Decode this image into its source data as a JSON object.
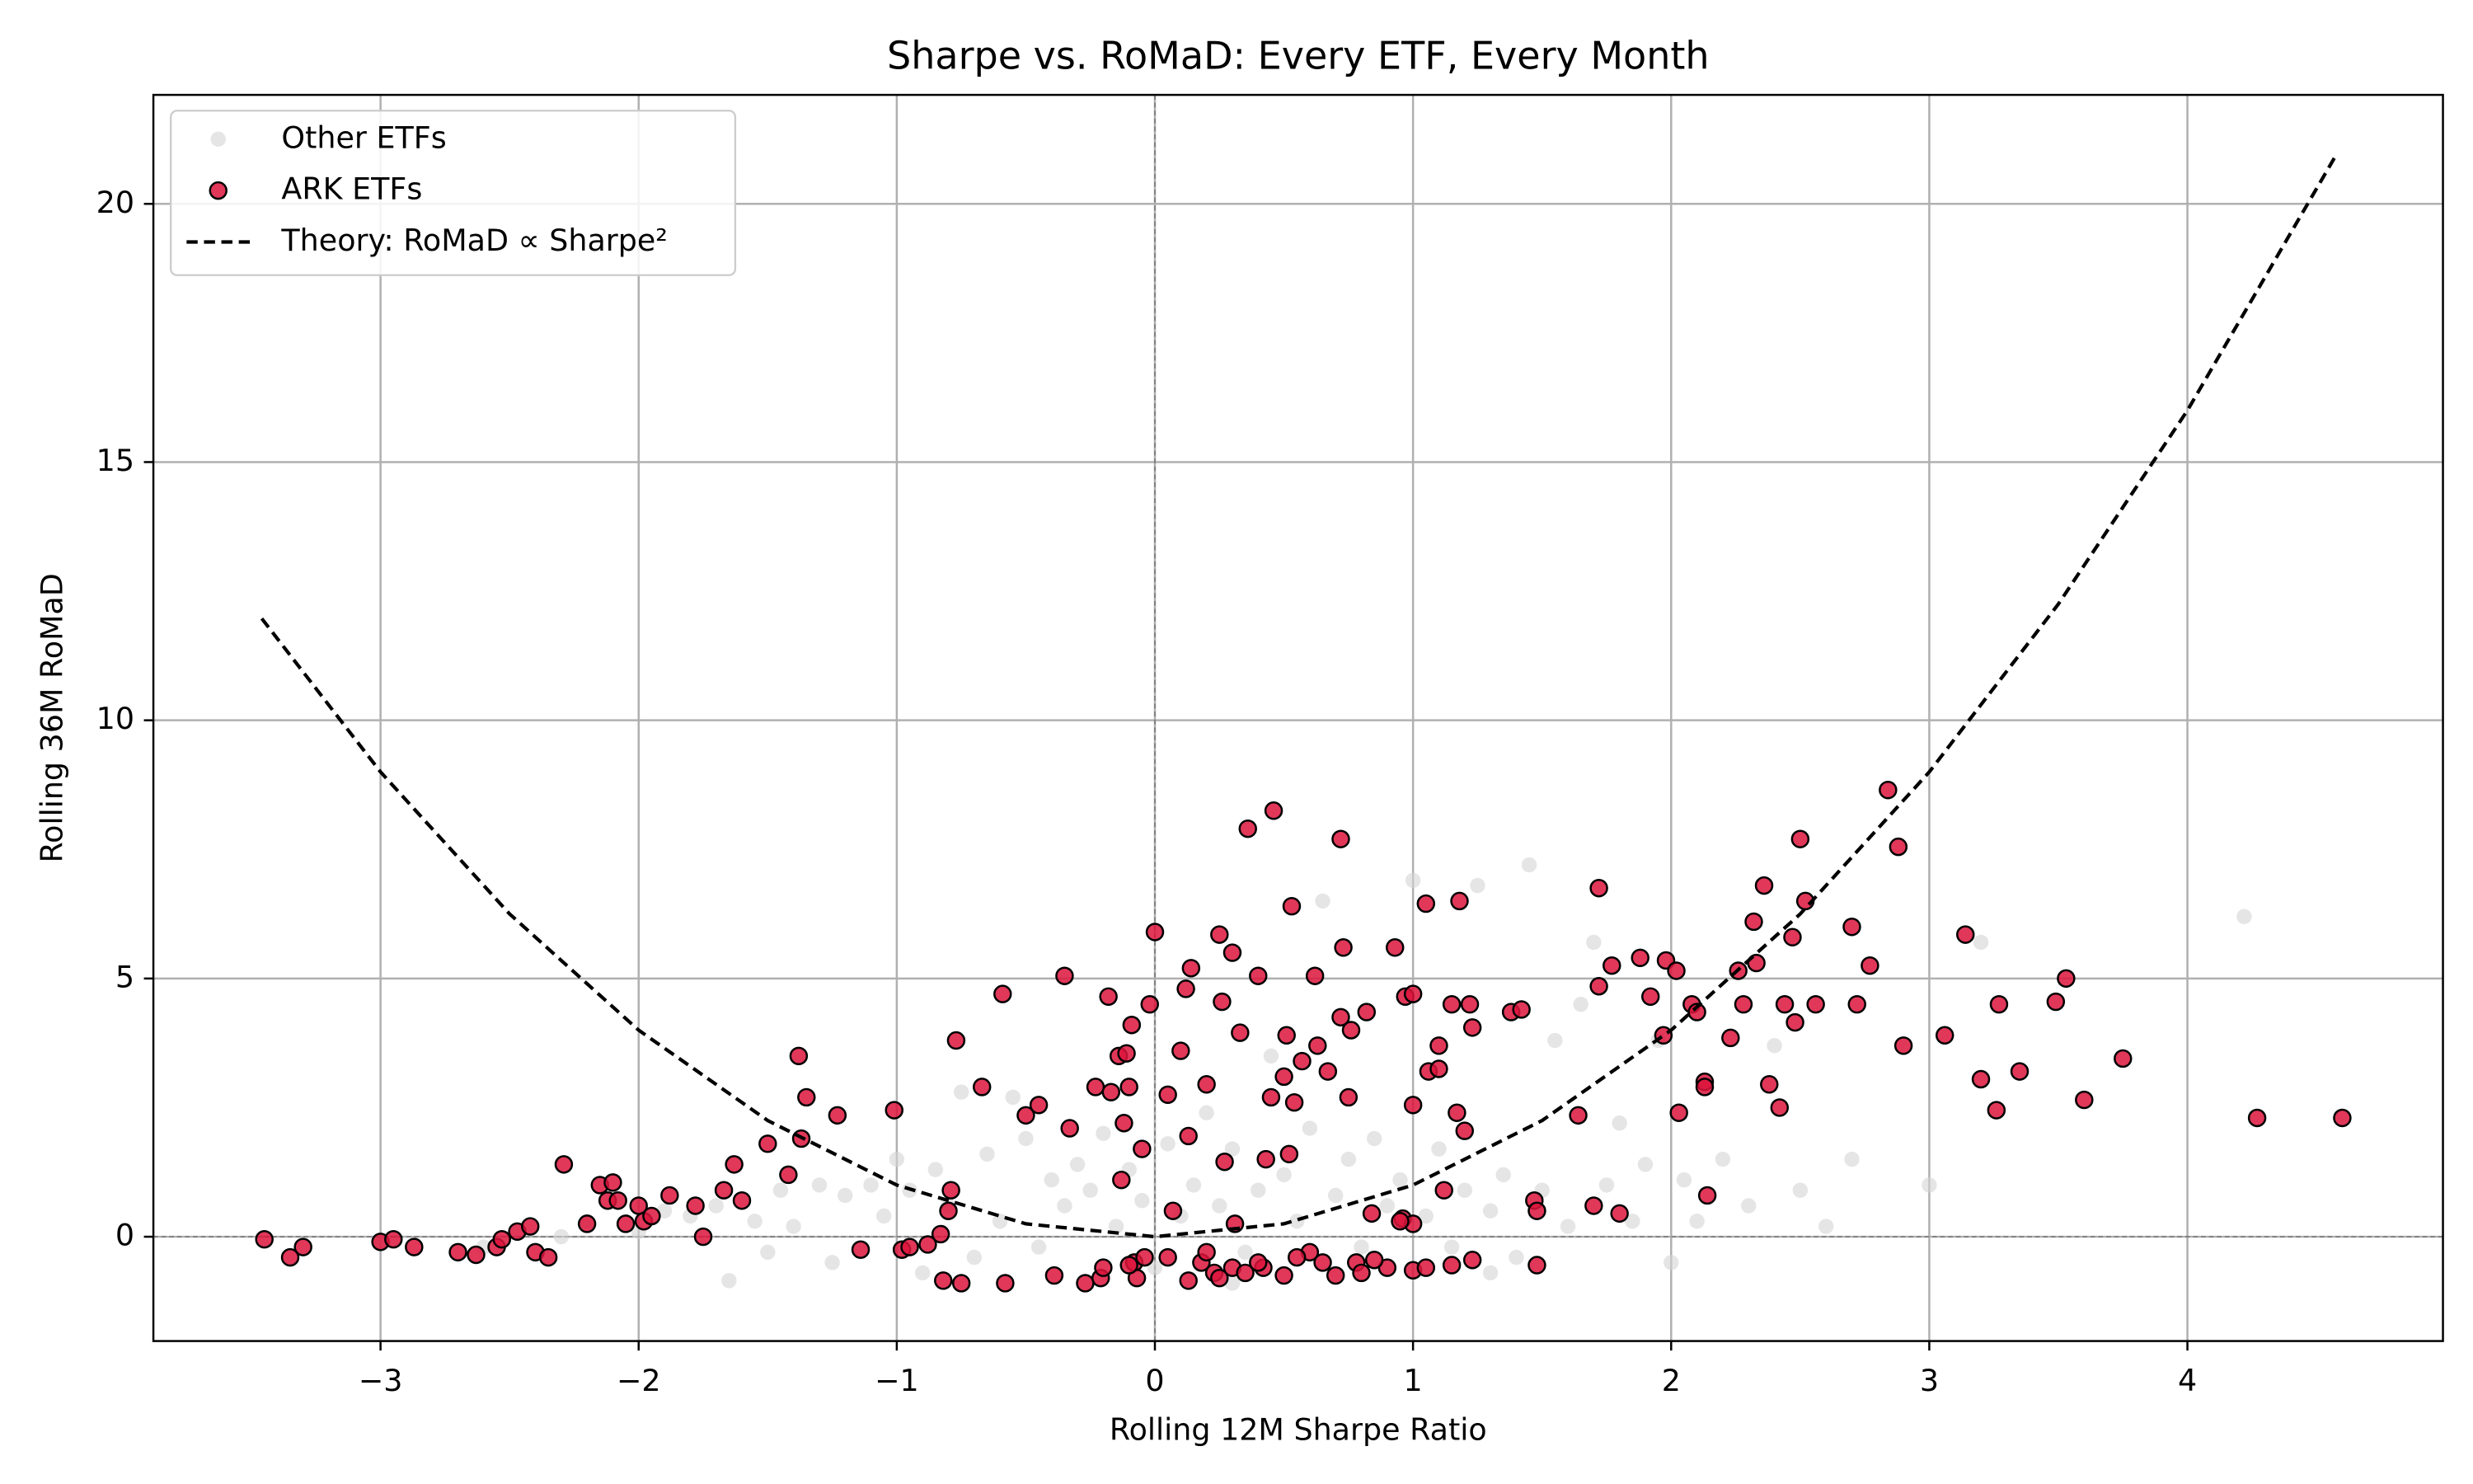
{
  "chart_data": {
    "type": "scatter",
    "title": "Sharpe vs. RoMaD: Every ETF, Every Month",
    "x_label": "Rolling 12M Sharpe Ratio",
    "y_label": "Rolling 36M RoMaD",
    "xlim": [
      -3.88,
      4.99
    ],
    "ylim": [
      -2.02,
      22.11
    ],
    "xticks": [
      {
        "value": -3,
        "label": "−3"
      },
      {
        "value": -2,
        "label": "−2"
      },
      {
        "value": -1,
        "label": "−1"
      },
      0,
      1,
      2,
      3,
      4
    ],
    "yticks": [
      0,
      5,
      10,
      15,
      20
    ],
    "grid": true,
    "legend": "upper left",
    "hline": 0,
    "vline": 0,
    "series": [
      {
        "name": "Other ETFs",
        "type": "scatter",
        "color": "#d3d3d3",
        "x": [
          -3.0,
          -2.6,
          -2.3,
          -2.2,
          -2.0,
          -1.9,
          -1.8,
          -1.7,
          -1.65,
          -1.55,
          -1.45,
          -1.4,
          -1.3,
          -1.25,
          -1.2,
          -1.1,
          -1.05,
          -1.0,
          -0.95,
          -0.9,
          -0.85,
          -0.8,
          -0.75,
          -0.7,
          -0.65,
          -0.6,
          -0.55,
          -0.5,
          -0.45,
          -0.4,
          -0.35,
          -0.3,
          -0.25,
          -0.2,
          -0.15,
          -0.1,
          -0.05,
          0.0,
          0.05,
          0.1,
          0.15,
          0.2,
          0.25,
          0.3,
          0.35,
          0.4,
          0.45,
          0.5,
          0.55,
          0.6,
          0.65,
          0.7,
          0.75,
          0.8,
          0.85,
          0.9,
          0.95,
          1.0,
          1.05,
          1.1,
          1.15,
          1.2,
          1.25,
          1.3,
          1.35,
          1.4,
          1.45,
          1.5,
          1.55,
          1.6,
          1.65,
          1.7,
          1.75,
          1.8,
          1.85,
          1.9,
          1.95,
          2.0,
          2.05,
          2.1,
          2.2,
          2.3,
          2.4,
          2.5,
          2.6,
          2.7,
          3.2,
          4.22,
          3.0,
          -1.5,
          0.3,
          1.3
        ],
        "values": [
          -0.1,
          -0.2,
          0.0,
          0.3,
          0.1,
          0.5,
          0.4,
          0.6,
          -0.85,
          0.3,
          0.9,
          0.2,
          1.0,
          -0.5,
          0.8,
          1.0,
          0.4,
          1.5,
          0.9,
          -0.7,
          1.3,
          0.6,
          2.8,
          -0.4,
          1.6,
          0.3,
          2.7,
          1.9,
          -0.2,
          1.1,
          0.6,
          1.4,
          0.9,
          2.0,
          0.2,
          1.3,
          0.7,
          -0.6,
          1.8,
          0.4,
          1.0,
          2.4,
          0.6,
          1.7,
          -0.3,
          0.9,
          3.5,
          1.2,
          0.3,
          2.1,
          6.5,
          0.8,
          1.5,
          -0.2,
          1.9,
          0.6,
          1.1,
          6.9,
          0.4,
          1.7,
          -0.2,
          0.9,
          6.8,
          0.5,
          1.2,
          -0.4,
          7.2,
          0.9,
          3.8,
          0.2,
          4.5,
          5.7,
          1.0,
          2.2,
          0.3,
          1.4,
          3.8,
          -0.5,
          1.1,
          0.3,
          1.5,
          0.6,
          3.7,
          0.9,
          0.2,
          1.5,
          5.7,
          6.2,
          1.0,
          -0.3,
          -0.9,
          -0.7
        ]
      },
      {
        "name": "ARK ETFs",
        "type": "scatter",
        "color": "#dc143c",
        "x": [
          -3.45,
          -3.35,
          -3.3,
          -3.0,
          -2.95,
          -2.87,
          -2.7,
          -2.63,
          -2.55,
          -2.53,
          -2.47,
          -2.42,
          -2.4,
          -2.35,
          -2.29,
          -2.2,
          -2.15,
          -2.12,
          -2.1,
          -2.08,
          -2.05,
          -2.0,
          -1.98,
          -1.95,
          -1.88,
          -1.78,
          -1.75,
          -1.67,
          -1.63,
          -1.6,
          -1.5,
          -1.42,
          -1.38,
          -1.35,
          -1.37,
          -1.23,
          -1.14,
          -1.01,
          -0.98,
          -0.95,
          -0.88,
          -0.83,
          -0.82,
          -0.8,
          -0.79,
          -0.77,
          -0.75,
          -0.67,
          -0.59,
          -0.58,
          -0.5,
          -0.45,
          -0.39,
          -0.35,
          -0.33,
          -0.27,
          -0.23,
          -0.21,
          -0.18,
          -0.17,
          -0.14,
          -0.11,
          -0.1,
          -0.13,
          -0.12,
          -0.09,
          -0.08,
          -0.07,
          -0.05,
          -0.04,
          -0.02,
          0.0,
          0.05,
          0.07,
          0.1,
          0.12,
          0.13,
          0.13,
          0.14,
          0.18,
          0.2,
          0.23,
          0.25,
          0.26,
          0.27,
          0.3,
          0.31,
          0.33,
          0.36,
          0.4,
          0.42,
          0.43,
          0.45,
          0.46,
          0.5,
          0.51,
          0.52,
          0.53,
          0.54,
          0.57,
          0.6,
          0.62,
          0.63,
          0.67,
          0.7,
          0.72,
          0.72,
          0.73,
          0.75,
          0.76,
          0.78,
          0.82,
          0.84,
          0.9,
          0.93,
          0.96,
          0.97,
          1.0,
          1.0,
          1.06,
          1.05,
          1.1,
          1.1,
          1.12,
          1.15,
          1.17,
          1.18,
          1.2,
          1.22,
          1.23,
          1.23,
          1.38,
          1.42,
          1.47,
          1.48,
          1.48,
          1.64,
          1.7,
          1.72,
          1.72,
          1.77,
          1.8,
          1.88,
          1.92,
          1.97,
          1.98,
          2.02,
          2.03,
          2.08,
          2.1,
          2.13,
          2.13,
          2.14,
          2.23,
          2.26,
          2.28,
          2.32,
          2.33,
          2.36,
          2.38,
          2.42,
          2.44,
          2.47,
          2.48,
          2.5,
          2.52,
          2.56,
          2.7,
          2.72,
          2.77,
          2.84,
          2.88,
          2.9,
          3.06,
          3.14,
          3.2,
          3.27,
          3.26,
          3.35,
          3.49,
          3.53,
          3.6,
          3.75,
          4.27,
          4.6,
          0.25,
          0.3,
          0.35,
          0.4,
          0.5,
          0.55,
          0.65,
          0.8,
          0.85,
          1.0,
          1.05,
          1.15,
          -0.2,
          -0.1,
          0.05,
          0.2,
          1.0,
          0.95
        ],
        "values": [
          -0.05,
          -0.4,
          -0.2,
          -0.1,
          -0.05,
          -0.2,
          -0.3,
          -0.35,
          -0.2,
          -0.05,
          0.1,
          0.2,
          -0.3,
          -0.4,
          1.4,
          0.25,
          1.0,
          0.7,
          1.05,
          0.7,
          0.25,
          0.6,
          0.3,
          0.4,
          0.8,
          0.6,
          0.0,
          0.9,
          1.4,
          0.7,
          1.8,
          1.2,
          3.5,
          2.7,
          1.9,
          2.35,
          -0.25,
          2.45,
          -0.25,
          -0.2,
          -0.15,
          0.05,
          -0.85,
          0.5,
          0.9,
          3.8,
          -0.9,
          2.9,
          4.7,
          -0.9,
          2.35,
          2.55,
          -0.75,
          5.05,
          2.1,
          -0.9,
          2.9,
          -0.8,
          4.65,
          2.8,
          3.5,
          3.55,
          2.9,
          1.1,
          2.2,
          4.1,
          -0.5,
          -0.8,
          1.7,
          -0.4,
          4.5,
          5.9,
          2.75,
          0.5,
          3.6,
          4.8,
          -0.85,
          1.95,
          5.2,
          -0.5,
          2.95,
          -0.7,
          5.85,
          4.55,
          1.45,
          5.5,
          0.25,
          3.95,
          7.9,
          5.05,
          -0.6,
          1.5,
          2.7,
          8.25,
          3.1,
          3.9,
          1.6,
          6.4,
          2.6,
          3.4,
          -0.3,
          5.05,
          3.7,
          3.2,
          -0.75,
          4.25,
          7.7,
          5.6,
          2.7,
          4.0,
          -0.5,
          4.35,
          0.45,
          -0.6,
          5.6,
          0.35,
          4.65,
          4.7,
          2.55,
          3.2,
          6.45,
          3.7,
          3.25,
          0.9,
          4.5,
          2.4,
          6.5,
          2.05,
          4.5,
          4.05,
          -0.45,
          4.35,
          4.4,
          0.7,
          0.5,
          -0.55,
          2.35,
          0.6,
          4.85,
          6.75,
          5.25,
          0.45,
          5.4,
          4.65,
          3.9,
          5.35,
          5.15,
          2.4,
          4.5,
          4.35,
          3.0,
          2.9,
          0.8,
          3.85,
          5.15,
          4.5,
          6.1,
          5.3,
          6.8,
          2.95,
          2.5,
          4.5,
          5.8,
          4.15,
          7.7,
          6.5,
          4.5,
          6.0,
          4.5,
          5.25,
          8.65,
          7.55,
          3.7,
          3.9,
          5.85,
          3.05,
          4.5,
          2.45,
          3.2,
          4.55,
          5.0,
          2.65,
          3.45,
          2.3,
          2.3,
          -0.8,
          -0.6,
          -0.7,
          -0.5,
          -0.75,
          -0.4,
          -0.5,
          -0.7,
          -0.45,
          -0.65,
          -0.6,
          -0.55,
          -0.6,
          -0.55,
          -0.4,
          -0.3,
          0.25,
          0.3
        ]
      },
      {
        "name": "Theory: RoMaD ∝ Sharpe²",
        "type": "line",
        "color": "#000000",
        "dash": true,
        "x": [
          -3.46,
          -3,
          -2.5,
          -2,
          -1.5,
          -1,
          -0.5,
          0,
          0.5,
          1,
          1.5,
          2,
          2.5,
          3,
          3.5,
          4,
          4.58
        ],
        "values": [
          11.97,
          9,
          6.25,
          4,
          2.25,
          1,
          0.25,
          0,
          0.25,
          1,
          2.25,
          4,
          6.25,
          9,
          12.25,
          16,
          20.98
        ]
      }
    ]
  }
}
